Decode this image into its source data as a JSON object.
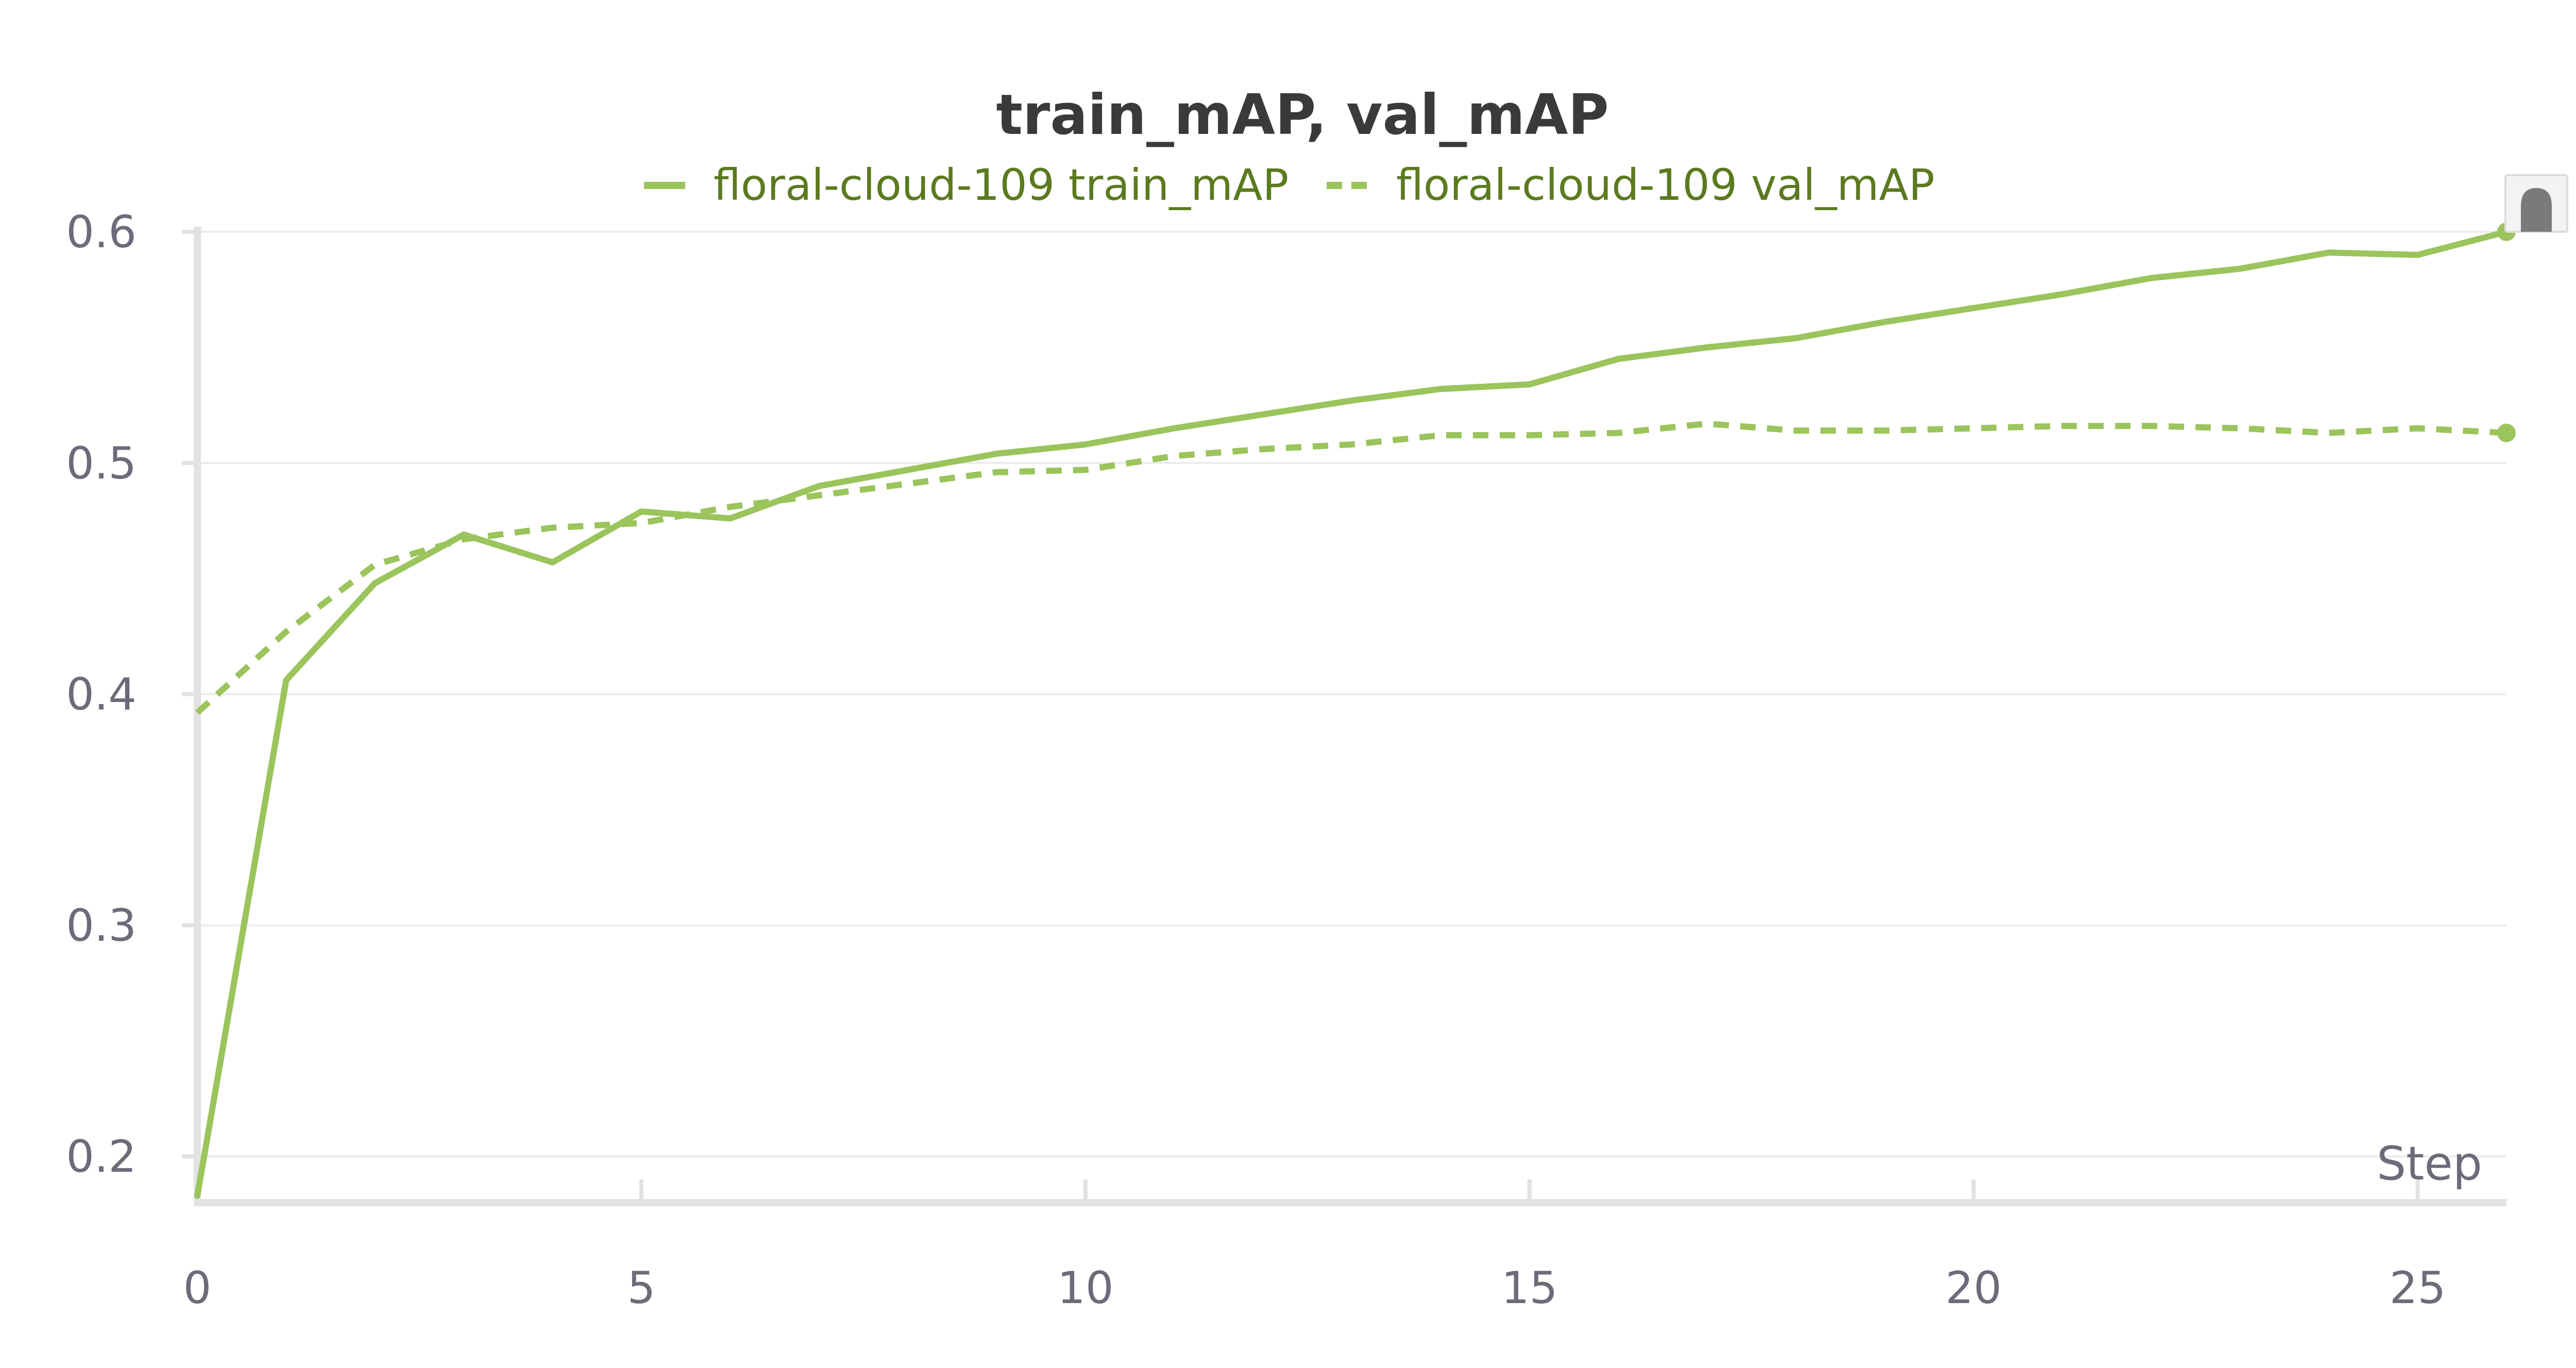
{
  "chart_data": {
    "type": "line",
    "title": "train_mAP, val_mAP",
    "xlabel": "Step",
    "ylabel": "",
    "xlim": [
      0,
      26
    ],
    "ylim": [
      0.18,
      0.6
    ],
    "xticks": [
      0,
      5,
      10,
      15,
      20,
      25
    ],
    "yticks": [
      0.2,
      0.3,
      0.4,
      0.5,
      0.6
    ],
    "grid": true,
    "legend_position": "top-center",
    "colors": {
      "series": "#9bc45c",
      "legend_text": "#5b7a1f"
    },
    "series": [
      {
        "name": "floral-cloud-109 train_mAP",
        "style": "solid",
        "x": [
          0,
          1,
          2,
          3,
          4,
          5,
          6,
          7,
          8,
          9,
          10,
          11,
          12,
          13,
          14,
          15,
          16,
          17,
          18,
          19,
          20,
          21,
          22,
          23,
          24,
          25,
          26
        ],
        "y": [
          0.183,
          0.406,
          0.448,
          0.469,
          0.457,
          0.479,
          0.476,
          0.49,
          0.497,
          0.504,
          0.508,
          0.515,
          0.521,
          0.527,
          0.532,
          0.534,
          0.545,
          0.55,
          0.554,
          0.561,
          0.567,
          0.573,
          0.58,
          0.584,
          0.591,
          0.59,
          0.6
        ]
      },
      {
        "name": "floral-cloud-109 val_mAP",
        "style": "dashed",
        "x": [
          0,
          1,
          2,
          3,
          4,
          5,
          6,
          7,
          8,
          9,
          10,
          11,
          12,
          13,
          14,
          15,
          16,
          17,
          18,
          19,
          20,
          21,
          22,
          23,
          24,
          25,
          26
        ],
        "y": [
          0.392,
          0.427,
          0.456,
          0.467,
          0.472,
          0.474,
          0.481,
          0.486,
          0.491,
          0.496,
          0.497,
          0.503,
          0.506,
          0.508,
          0.512,
          0.512,
          0.513,
          0.517,
          0.514,
          0.514,
          0.515,
          0.516,
          0.516,
          0.515,
          0.513,
          0.515,
          0.513
        ]
      }
    ]
  }
}
